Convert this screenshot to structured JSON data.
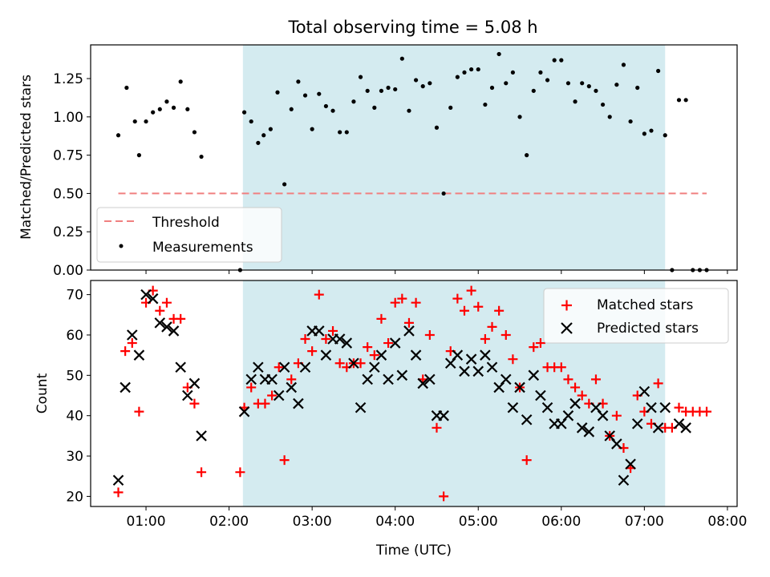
{
  "figure": {
    "title": "Total observing time = 5.08 h",
    "colors": {
      "shade": "#d4ebf0",
      "threshold": "#f08080",
      "matched": "#ff0000",
      "predicted": "#000000",
      "measurement": "#000000"
    }
  },
  "chart_data": [
    {
      "type": "scatter",
      "ylabel": "Matched/Predicted stars",
      "ylim": [
        0,
        1.47
      ],
      "yticks": [
        "0.00",
        "0.25",
        "0.50",
        "0.75",
        "1.00",
        "1.25"
      ],
      "xlim": [
        "00:20",
        "08:07"
      ],
      "shaded_interval": [
        "02:10",
        "07:15"
      ],
      "legend": {
        "position": "lower-left",
        "entries": [
          "Threshold",
          "Measurements"
        ]
      },
      "threshold": {
        "name": "Threshold",
        "y": 0.5,
        "x": [
          "00:40",
          "07:45"
        ]
      },
      "series": [
        {
          "name": "Measurements",
          "points": [
            [
              "00:40",
              0.88
            ],
            [
              "00:46",
              1.19
            ],
            [
              "00:52",
              0.97
            ],
            [
              "00:55",
              0.75
            ],
            [
              "01:00",
              0.97
            ],
            [
              "01:05",
              1.03
            ],
            [
              "01:10",
              1.05
            ],
            [
              "01:15",
              1.1
            ],
            [
              "01:20",
              1.06
            ],
            [
              "01:25",
              1.23
            ],
            [
              "01:30",
              1.05
            ],
            [
              "01:35",
              0.9
            ],
            [
              "01:40",
              0.74
            ],
            [
              "02:08",
              0.0
            ],
            [
              "02:11",
              1.03
            ],
            [
              "02:16",
              0.97
            ],
            [
              "02:21",
              0.83
            ],
            [
              "02:25",
              0.88
            ],
            [
              "02:30",
              0.92
            ],
            [
              "02:35",
              1.16
            ],
            [
              "02:40",
              0.56
            ],
            [
              "02:45",
              1.05
            ],
            [
              "02:50",
              1.23
            ],
            [
              "02:55",
              1.14
            ],
            [
              "03:00",
              0.92
            ],
            [
              "03:05",
              1.15
            ],
            [
              "03:10",
              1.07
            ],
            [
              "03:15",
              1.04
            ],
            [
              "03:20",
              0.9
            ],
            [
              "03:25",
              0.9
            ],
            [
              "03:30",
              1.1
            ],
            [
              "03:35",
              1.26
            ],
            [
              "03:40",
              1.17
            ],
            [
              "03:45",
              1.06
            ],
            [
              "03:50",
              1.17
            ],
            [
              "03:55",
              1.19
            ],
            [
              "04:00",
              1.18
            ],
            [
              "04:05",
              1.38
            ],
            [
              "04:10",
              1.04
            ],
            [
              "04:15",
              1.24
            ],
            [
              "04:20",
              1.2
            ],
            [
              "04:25",
              1.22
            ],
            [
              "04:30",
              0.93
            ],
            [
              "04:35",
              0.5
            ],
            [
              "04:40",
              1.06
            ],
            [
              "04:45",
              1.26
            ],
            [
              "04:50",
              1.29
            ],
            [
              "04:55",
              1.31
            ],
            [
              "05:00",
              1.31
            ],
            [
              "05:05",
              1.08
            ],
            [
              "05:10",
              1.19
            ],
            [
              "05:15",
              1.41
            ],
            [
              "05:20",
              1.22
            ],
            [
              "05:25",
              1.29
            ],
            [
              "05:30",
              1.0
            ],
            [
              "05:35",
              0.75
            ],
            [
              "05:40",
              1.17
            ],
            [
              "05:45",
              1.29
            ],
            [
              "05:50",
              1.24
            ],
            [
              "05:55",
              1.37
            ],
            [
              "06:00",
              1.37
            ],
            [
              "06:05",
              1.22
            ],
            [
              "06:10",
              1.1
            ],
            [
              "06:15",
              1.22
            ],
            [
              "06:20",
              1.2
            ],
            [
              "06:25",
              1.17
            ],
            [
              "06:30",
              1.08
            ],
            [
              "06:35",
              1.0
            ],
            [
              "06:40",
              1.21
            ],
            [
              "06:45",
              1.34
            ],
            [
              "06:50",
              0.97
            ],
            [
              "06:55",
              1.19
            ],
            [
              "07:00",
              0.89
            ],
            [
              "07:05",
              0.91
            ],
            [
              "07:10",
              1.3
            ],
            [
              "07:15",
              0.88
            ],
            [
              "07:20",
              0.0
            ],
            [
              "07:25",
              1.11
            ],
            [
              "07:30",
              1.11
            ],
            [
              "07:35",
              0.0
            ],
            [
              "07:40",
              0.0
            ],
            [
              "07:45",
              0.0
            ]
          ]
        }
      ]
    },
    {
      "type": "scatter",
      "ylabel": "Count",
      "xlabel": "Time (UTC)",
      "ylim": [
        17.5,
        73.5
      ],
      "yticks": [
        "20",
        "30",
        "40",
        "50",
        "60",
        "70"
      ],
      "xlim": [
        "00:20",
        "08:07"
      ],
      "xticks": [
        "01:00",
        "02:00",
        "03:00",
        "04:00",
        "05:00",
        "06:00",
        "07:00",
        "08:00"
      ],
      "shaded_interval": [
        "02:10",
        "07:15"
      ],
      "legend": {
        "position": "top-right",
        "entries": [
          "Matched stars",
          "Predicted stars"
        ]
      },
      "series": [
        {
          "name": "Matched stars",
          "marker": "plus",
          "points": [
            [
              "00:40",
              21
            ],
            [
              "00:45",
              56
            ],
            [
              "00:50",
              58
            ],
            [
              "00:55",
              41
            ],
            [
              "01:00",
              68
            ],
            [
              "01:05",
              71
            ],
            [
              "01:10",
              66
            ],
            [
              "01:15",
              68
            ],
            [
              "01:20",
              64
            ],
            [
              "01:25",
              64
            ],
            [
              "01:30",
              47
            ],
            [
              "01:35",
              43
            ],
            [
              "01:40",
              26
            ],
            [
              "02:08",
              26
            ],
            [
              "02:11",
              42
            ],
            [
              "02:16",
              47
            ],
            [
              "02:21",
              43
            ],
            [
              "02:26",
              43
            ],
            [
              "02:31",
              45
            ],
            [
              "02:36",
              52
            ],
            [
              "02:40",
              29
            ],
            [
              "02:45",
              49
            ],
            [
              "02:50",
              53
            ],
            [
              "02:55",
              59
            ],
            [
              "03:00",
              56
            ],
            [
              "03:05",
              70
            ],
            [
              "03:10",
              59
            ],
            [
              "03:15",
              61
            ],
            [
              "03:20",
              53
            ],
            [
              "03:25",
              52
            ],
            [
              "03:30",
              53
            ],
            [
              "03:35",
              53
            ],
            [
              "03:40",
              57
            ],
            [
              "03:45",
              55
            ],
            [
              "03:50",
              64
            ],
            [
              "03:55",
              58
            ],
            [
              "04:00",
              68
            ],
            [
              "04:05",
              69
            ],
            [
              "04:10",
              63
            ],
            [
              "04:15",
              68
            ],
            [
              "04:20",
              49
            ],
            [
              "04:25",
              60
            ],
            [
              "04:30",
              37
            ],
            [
              "04:35",
              20
            ],
            [
              "04:40",
              56
            ],
            [
              "04:45",
              69
            ],
            [
              "04:50",
              66
            ],
            [
              "04:55",
              71
            ],
            [
              "05:00",
              67
            ],
            [
              "05:05",
              59
            ],
            [
              "05:10",
              62
            ],
            [
              "05:15",
              66
            ],
            [
              "05:20",
              60
            ],
            [
              "05:25",
              54
            ],
            [
              "05:30",
              47
            ],
            [
              "05:35",
              29
            ],
            [
              "05:40",
              57
            ],
            [
              "05:45",
              58
            ],
            [
              "05:50",
              52
            ],
            [
              "05:55",
              52
            ],
            [
              "06:00",
              52
            ],
            [
              "06:05",
              49
            ],
            [
              "06:10",
              47
            ],
            [
              "06:15",
              45
            ],
            [
              "06:20",
              43
            ],
            [
              "06:25",
              49
            ],
            [
              "06:30",
              43
            ],
            [
              "06:35",
              35
            ],
            [
              "06:40",
              40
            ],
            [
              "06:45",
              32
            ],
            [
              "06:50",
              27
            ],
            [
              "06:55",
              45
            ],
            [
              "07:00",
              41
            ],
            [
              "07:05",
              38
            ],
            [
              "07:10",
              48
            ],
            [
              "07:15",
              37
            ],
            [
              "07:20",
              37
            ],
            [
              "07:25",
              42
            ],
            [
              "07:30",
              41
            ],
            [
              "07:35",
              41
            ],
            [
              "07:40",
              41
            ],
            [
              "07:45",
              41
            ]
          ]
        },
        {
          "name": "Predicted stars",
          "marker": "x",
          "points": [
            [
              "00:40",
              24
            ],
            [
              "00:45",
              47
            ],
            [
              "00:50",
              60
            ],
            [
              "00:55",
              55
            ],
            [
              "01:00",
              70
            ],
            [
              "01:05",
              69
            ],
            [
              "01:10",
              63
            ],
            [
              "01:15",
              62
            ],
            [
              "01:20",
              61
            ],
            [
              "01:25",
              52
            ],
            [
              "01:30",
              45
            ],
            [
              "01:35",
              48
            ],
            [
              "01:40",
              35
            ],
            [
              "02:11",
              41
            ],
            [
              "02:16",
              49
            ],
            [
              "02:21",
              52
            ],
            [
              "02:26",
              49
            ],
            [
              "02:31",
              49
            ],
            [
              "02:36",
              45
            ],
            [
              "02:40",
              52
            ],
            [
              "02:45",
              47
            ],
            [
              "02:50",
              43
            ],
            [
              "02:55",
              52
            ],
            [
              "03:00",
              61
            ],
            [
              "03:05",
              61
            ],
            [
              "03:10",
              55
            ],
            [
              "03:15",
              59
            ],
            [
              "03:20",
              59
            ],
            [
              "03:25",
              58
            ],
            [
              "03:30",
              53
            ],
            [
              "03:35",
              42
            ],
            [
              "03:40",
              49
            ],
            [
              "03:45",
              52
            ],
            [
              "03:50",
              55
            ],
            [
              "03:55",
              49
            ],
            [
              "04:00",
              58
            ],
            [
              "04:05",
              50
            ],
            [
              "04:10",
              61
            ],
            [
              "04:15",
              55
            ],
            [
              "04:20",
              48
            ],
            [
              "04:25",
              49
            ],
            [
              "04:30",
              40
            ],
            [
              "04:35",
              40
            ],
            [
              "04:40",
              53
            ],
            [
              "04:45",
              55
            ],
            [
              "04:50",
              51
            ],
            [
              "04:55",
              54
            ],
            [
              "05:00",
              51
            ],
            [
              "05:05",
              55
            ],
            [
              "05:10",
              52
            ],
            [
              "05:15",
              47
            ],
            [
              "05:20",
              49
            ],
            [
              "05:25",
              42
            ],
            [
              "05:30",
              47
            ],
            [
              "05:35",
              39
            ],
            [
              "05:40",
              50
            ],
            [
              "05:45",
              45
            ],
            [
              "05:50",
              42
            ],
            [
              "05:55",
              38
            ],
            [
              "06:00",
              38
            ],
            [
              "06:05",
              40
            ],
            [
              "06:10",
              43
            ],
            [
              "06:15",
              37
            ],
            [
              "06:20",
              36
            ],
            [
              "06:25",
              42
            ],
            [
              "06:30",
              40
            ],
            [
              "06:35",
              35
            ],
            [
              "06:40",
              33
            ],
            [
              "06:45",
              24
            ],
            [
              "06:50",
              28
            ],
            [
              "06:55",
              38
            ],
            [
              "07:00",
              46
            ],
            [
              "07:05",
              42
            ],
            [
              "07:10",
              37
            ],
            [
              "07:15",
              42
            ],
            [
              "07:25",
              38
            ],
            [
              "07:30",
              37
            ]
          ]
        }
      ]
    }
  ]
}
